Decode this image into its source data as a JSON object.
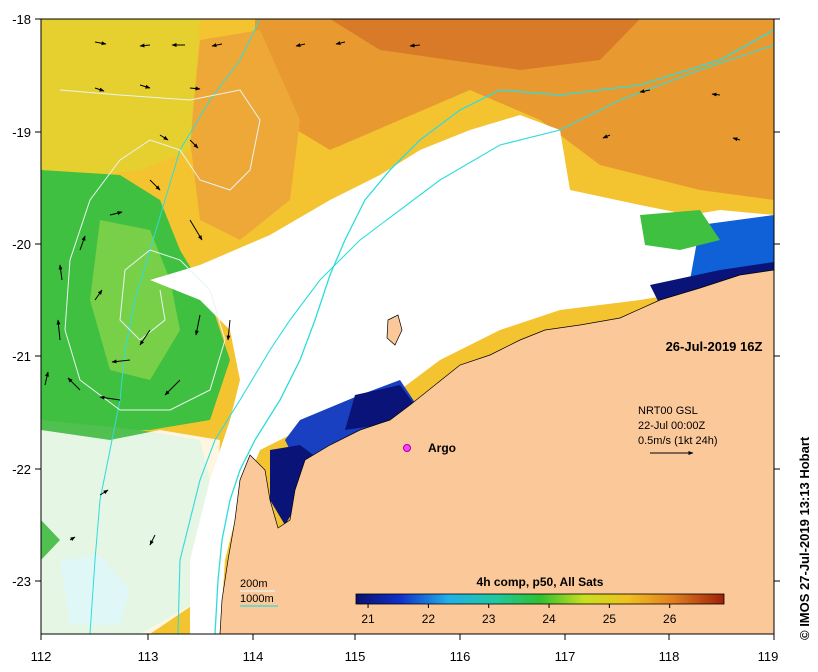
{
  "map": {
    "date_label": "26-Jul-2019 16Z",
    "product_label": "4h comp, p50, All Sats",
    "credit": "© IMOS 27-Jul-2019 13:13 Hobart",
    "argo_label": "Argo",
    "current_legend": {
      "line1": "NRT00 GSL",
      "line2": "22-Jul 00:00Z",
      "line3": "0.5m/s (1kt 24h)"
    },
    "isobath_legend": {
      "shallow": "200m",
      "deep": "1000m"
    },
    "lon_ticks": [
      "112",
      "113",
      "114",
      "115",
      "116",
      "117",
      "118",
      "119"
    ],
    "lat_ticks": [
      "-18",
      "-19",
      "-20",
      "-21",
      "-22",
      "-23"
    ],
    "colorbar": {
      "ticks": [
        "21",
        "22",
        "23",
        "24",
        "25",
        "26"
      ],
      "range": [
        20.8,
        26.9
      ],
      "unit": ""
    },
    "colors": {
      "land": "#fbc89a",
      "cloud": "#ffffff",
      "isobath_200": "#2fdcdc",
      "isobath_1000": "#e8f4f4",
      "argo": "#ff3cff"
    },
    "argo_position": {
      "lon": 115.55,
      "lat": -21.78
    }
  }
}
